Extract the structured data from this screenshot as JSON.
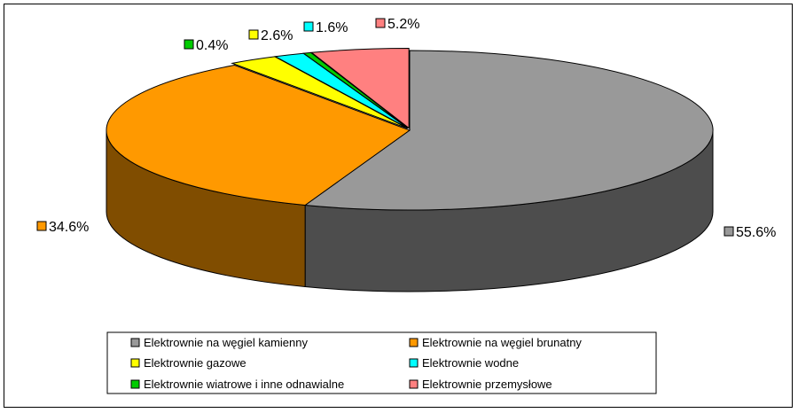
{
  "chart_data": {
    "type": "pie",
    "style": "3d-exploded",
    "slices": [
      {
        "label": "Elektrownie na węgiel kamienny",
        "value": 55.6,
        "value_label": "55.6%",
        "color": "#999999",
        "side_color": "#4d4d4d"
      },
      {
        "label": "Elektrownie na węgiel brunatny",
        "value": 34.6,
        "value_label": "34.6%",
        "color": "#ff9900",
        "side_color": "#804d00"
      },
      {
        "label": "Elektrownie gazowe",
        "value": 2.6,
        "value_label": "2.6%",
        "color": "#ffff00",
        "side_color": "#808000"
      },
      {
        "label": "Elektrownie wodne",
        "value": 1.6,
        "value_label": "1.6%",
        "color": "#00ffff",
        "side_color": "#008080"
      },
      {
        "label": "Elektrownie wiatrowe i inne odnawialne",
        "value": 0.4,
        "value_label": "0.4%",
        "color": "#00cc00",
        "side_color": "#006600"
      },
      {
        "label": "Elektrownie  przemysłowe",
        "value": 5.2,
        "value_label": "5.2%",
        "color": "#ff8080",
        "side_color": "#804040"
      }
    ],
    "legend_order": [
      0,
      1,
      2,
      3,
      4,
      5
    ],
    "legend_position": "bottom"
  }
}
